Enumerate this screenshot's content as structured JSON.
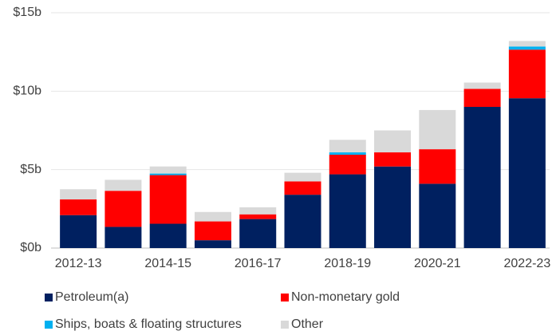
{
  "chart_data": {
    "type": "bar",
    "stacked": true,
    "categories": [
      "2012-13",
      null,
      "2014-15",
      null,
      "2016-17",
      null,
      "2018-19",
      null,
      "2020-21",
      null,
      "2022-23"
    ],
    "series": [
      {
        "name": "Petroleum(a)",
        "color": "#002060",
        "values": [
          2.1,
          1.35,
          1.55,
          0.5,
          1.85,
          3.4,
          4.7,
          5.2,
          4.1,
          9.0,
          9.55
        ]
      },
      {
        "name": "Non-monetary gold",
        "color": "#ff0000",
        "values": [
          1.0,
          2.3,
          3.1,
          1.2,
          0.3,
          0.85,
          1.25,
          0.9,
          2.2,
          1.15,
          3.1
        ]
      },
      {
        "name": "Ships, boats & floating structures",
        "color": "#00b0f0",
        "values": [
          0,
          0,
          0.1,
          0,
          0,
          0,
          0.15,
          0,
          0,
          0,
          0.2
        ]
      },
      {
        "name": "Other",
        "color": "#d9d9d9",
        "values": [
          0.65,
          0.7,
          0.45,
          0.6,
          0.45,
          0.55,
          0.8,
          1.4,
          2.5,
          0.4,
          0.35
        ]
      }
    ],
    "ylim": [
      0,
      15
    ],
    "yticks": [
      {
        "value": 0,
        "label": "$0b"
      },
      {
        "value": 5,
        "label": "$5b"
      },
      {
        "value": 10,
        "label": "$10b"
      },
      {
        "value": 15,
        "label": "$15b"
      }
    ],
    "grid": true,
    "legend": "bottom"
  }
}
